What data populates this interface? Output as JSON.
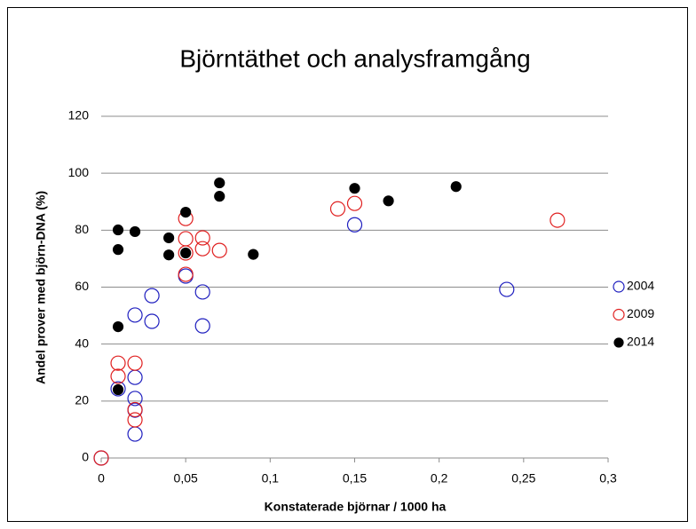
{
  "chart_data": {
    "type": "scatter",
    "title": "Björntäthet och analysframgång",
    "x_label": "Konstaterade björnar / 1000 ha",
    "y_label": "Andel prover med björn-DNA (%)",
    "xlim": [
      0,
      0.3
    ],
    "xticks": [
      0,
      {
        "value": 0.05,
        "label": "0,05"
      },
      {
        "value": 0.1,
        "label": "0,1"
      },
      {
        "value": 0.15,
        "label": "0,15"
      },
      {
        "value": 0.2,
        "label": "0,2"
      },
      {
        "value": 0.25,
        "label": "0,25"
      },
      {
        "value": 0.3,
        "label": "0,3"
      }
    ],
    "ylim": [
      0,
      120
    ],
    "yticks": [
      0,
      20,
      40,
      60,
      80,
      100,
      120
    ],
    "grid": true,
    "legend": "right",
    "series": [
      {
        "name": "2004",
        "color": "#1f1fbf",
        "marker": "open",
        "x": [
          0,
          0.01,
          0.02,
          0.02,
          0.02,
          0.02,
          0.02,
          0.03,
          0.03,
          0.05,
          0.06,
          0.06,
          0.15,
          0.24
        ],
        "values": [
          0,
          24.3,
          28.3,
          20.9,
          16.8,
          8.4,
          50.2,
          48,
          57,
          63.9,
          58.3,
          46.4,
          81.9,
          59.2
        ]
      },
      {
        "name": "2009",
        "color": "#e02020",
        "marker": "open",
        "x": [
          0,
          0.01,
          0.01,
          0.02,
          0.02,
          0.02,
          0.05,
          0.05,
          0.05,
          0.05,
          0.06,
          0.06,
          0.07,
          0.14,
          0.15,
          0.27
        ],
        "values": [
          0,
          33.3,
          28.7,
          33.3,
          17,
          13.4,
          84.1,
          77,
          72,
          64.5,
          77.3,
          73.5,
          72.9,
          87.5,
          89.4,
          83.5
        ]
      },
      {
        "name": "2014",
        "color": "#000000",
        "marker": "filled",
        "x": [
          0.01,
          0.01,
          0.01,
          0.01,
          0.02,
          0.04,
          0.04,
          0.05,
          0.05,
          0.07,
          0.07,
          0.09,
          0.15,
          0.17,
          0.21
        ],
        "values": [
          80.1,
          73.2,
          46.1,
          24,
          79.5,
          77.3,
          71.3,
          86.3,
          72,
          96.6,
          91.9,
          71.5,
          94.7,
          90.3,
          95.3
        ]
      }
    ]
  }
}
